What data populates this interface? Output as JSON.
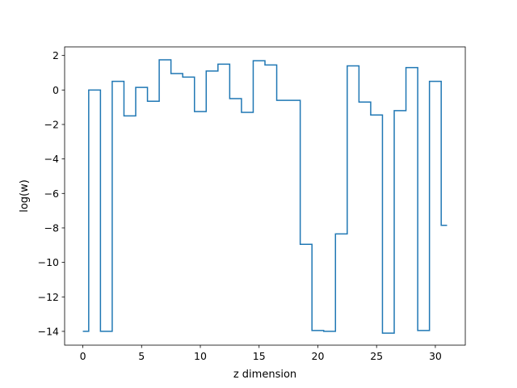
{
  "chart_data": {
    "type": "line",
    "drawstyle": "steps-mid",
    "title": "",
    "xlabel": "z dimension",
    "ylabel": "log(w)",
    "xlim": [
      -1.55,
      32.55
    ],
    "ylim": [
      -14.8,
      2.5
    ],
    "xticks": [
      0,
      5,
      10,
      15,
      20,
      25,
      30
    ],
    "yticks": [
      2,
      0,
      -2,
      -4,
      -6,
      -8,
      -10,
      -12,
      -14
    ],
    "grid": false,
    "legend": "none",
    "series": [
      {
        "color": "#1f77b4",
        "x": [
          0,
          1,
          2,
          3,
          4,
          5,
          6,
          7,
          8,
          9,
          10,
          11,
          12,
          13,
          14,
          15,
          16,
          17,
          18,
          19,
          20,
          21,
          22,
          23,
          24,
          25,
          26,
          27,
          28,
          29,
          30,
          31
        ],
        "y": [
          -14.0,
          0.0,
          -14.0,
          0.5,
          -1.5,
          0.15,
          -0.65,
          1.75,
          0.95,
          0.75,
          -1.25,
          1.1,
          1.5,
          -0.5,
          -1.3,
          1.7,
          1.45,
          -0.6,
          -0.6,
          -8.95,
          -13.95,
          -14.0,
          -8.35,
          1.4,
          -0.7,
          -1.45,
          -14.1,
          -1.2,
          1.3,
          -13.95,
          0.5,
          -7.85
        ]
      }
    ]
  }
}
